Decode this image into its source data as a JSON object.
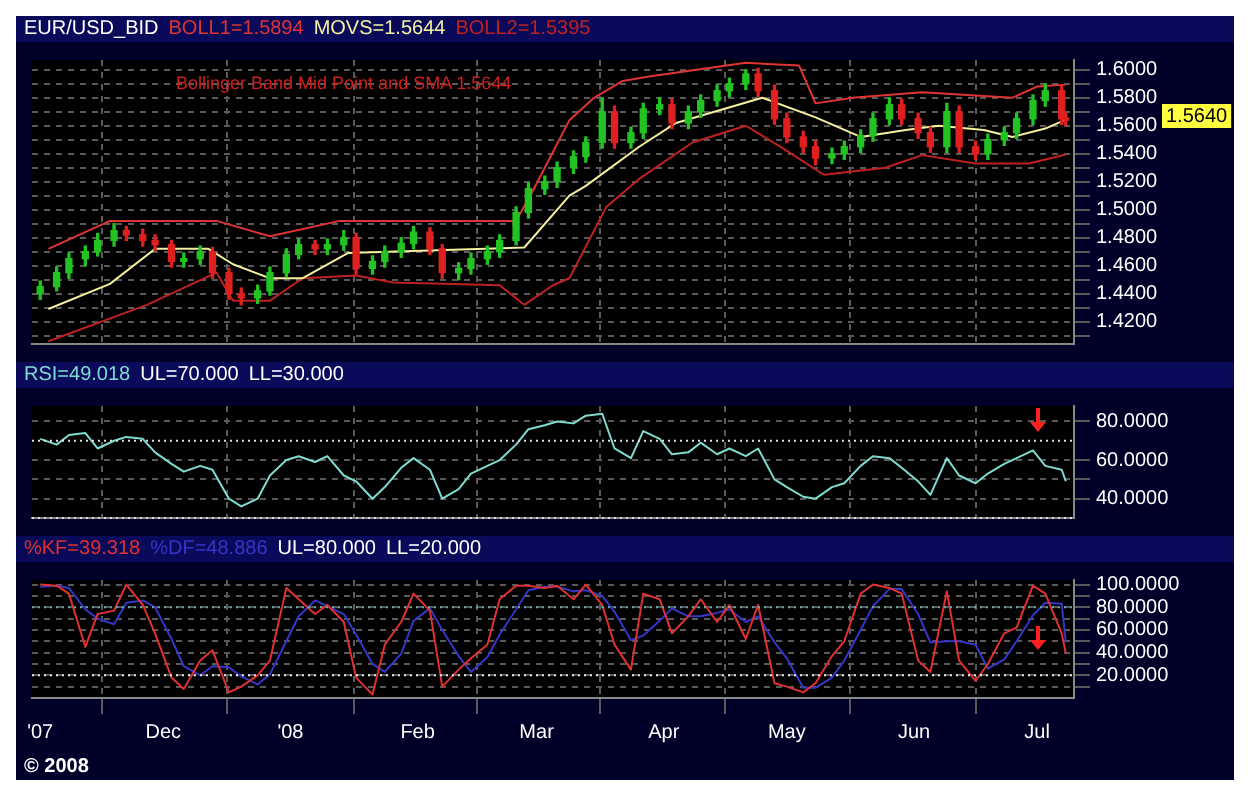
{
  "chart_data": [
    {
      "type": "candlestick",
      "title": "EUR/USD_BID",
      "legend": "top left",
      "tick_labels": "y",
      "grid": true,
      "x": [
        "2007-11-01",
        "2007-11-05",
        "2007-11-08",
        "2007-11-12",
        "2007-11-15",
        "2007-11-19",
        "2007-11-22",
        "2007-11-26",
        "2007-11-29",
        "2007-12-03",
        "2007-12-06",
        "2007-12-10",
        "2007-12-13",
        "2007-12-17",
        "2007-12-20",
        "2007-12-24",
        "2007-12-27",
        "2007-12-31",
        "2008-01-03",
        "2008-01-07",
        "2008-01-10",
        "2008-01-14",
        "2008-01-17",
        "2008-01-21",
        "2008-01-24",
        "2008-01-28",
        "2008-01-31",
        "2008-02-04",
        "2008-02-07",
        "2008-02-11",
        "2008-02-14",
        "2008-02-18",
        "2008-02-21",
        "2008-02-25",
        "2008-02-28",
        "2008-03-03",
        "2008-03-06",
        "2008-03-10",
        "2008-03-13",
        "2008-03-17",
        "2008-03-20",
        "2008-03-24",
        "2008-03-27",
        "2008-03-31",
        "2008-04-03",
        "2008-04-07",
        "2008-04-10",
        "2008-04-14",
        "2008-04-17",
        "2008-04-21",
        "2008-04-24",
        "2008-04-28",
        "2008-05-01",
        "2008-05-05",
        "2008-05-08",
        "2008-05-12",
        "2008-05-15",
        "2008-05-19",
        "2008-05-22",
        "2008-05-26",
        "2008-05-29",
        "2008-06-02",
        "2008-06-05",
        "2008-06-09",
        "2008-06-12",
        "2008-06-16",
        "2008-06-19",
        "2008-06-23",
        "2008-06-26",
        "2008-06-30",
        "2008-07-03",
        "2008-07-07",
        "2008-07-08"
      ],
      "ohlc": [
        [
          1.44,
          1.449,
          1.436,
          1.445
        ],
        [
          1.445,
          1.459,
          1.442,
          1.455
        ],
        [
          1.455,
          1.469,
          1.451,
          1.465
        ],
        [
          1.465,
          1.474,
          1.46,
          1.47
        ],
        [
          1.47,
          1.483,
          1.467,
          1.478
        ],
        [
          1.478,
          1.49,
          1.474,
          1.485
        ],
        [
          1.485,
          1.488,
          1.478,
          1.482
        ],
        [
          1.482,
          1.486,
          1.474,
          1.478
        ],
        [
          1.478,
          1.482,
          1.471,
          1.475
        ],
        [
          1.475,
          1.478,
          1.459,
          1.463
        ],
        [
          1.463,
          1.469,
          1.459,
          1.465
        ],
        [
          1.465,
          1.474,
          1.461,
          1.47
        ],
        [
          1.47,
          1.473,
          1.451,
          1.455
        ],
        [
          1.455,
          1.458,
          1.436,
          1.44
        ],
        [
          1.44,
          1.444,
          1.432,
          1.437
        ],
        [
          1.437,
          1.446,
          1.433,
          1.442
        ],
        [
          1.442,
          1.459,
          1.439,
          1.455
        ],
        [
          1.455,
          1.472,
          1.452,
          1.468
        ],
        [
          1.468,
          1.479,
          1.465,
          1.475
        ],
        [
          1.475,
          1.478,
          1.468,
          1.472
        ],
        [
          1.472,
          1.479,
          1.468,
          1.475
        ],
        [
          1.475,
          1.485,
          1.471,
          1.48
        ],
        [
          1.48,
          1.483,
          1.454,
          1.458
        ],
        [
          1.458,
          1.467,
          1.454,
          1.463
        ],
        [
          1.463,
          1.474,
          1.459,
          1.47
        ],
        [
          1.47,
          1.48,
          1.466,
          1.476
        ],
        [
          1.476,
          1.488,
          1.472,
          1.484
        ],
        [
          1.484,
          1.487,
          1.468,
          1.472
        ],
        [
          1.472,
          1.475,
          1.451,
          1.455
        ],
        [
          1.455,
          1.462,
          1.45,
          1.458
        ],
        [
          1.458,
          1.469,
          1.454,
          1.465
        ],
        [
          1.465,
          1.474,
          1.461,
          1.47
        ],
        [
          1.47,
          1.482,
          1.466,
          1.478
        ],
        [
          1.478,
          1.502,
          1.475,
          1.498
        ],
        [
          1.498,
          1.519,
          1.494,
          1.515
        ],
        [
          1.515,
          1.524,
          1.511,
          1.52
        ],
        [
          1.52,
          1.534,
          1.516,
          1.53
        ],
        [
          1.53,
          1.542,
          1.526,
          1.538
        ],
        [
          1.538,
          1.552,
          1.534,
          1.548
        ],
        [
          1.548,
          1.58,
          1.544,
          1.57
        ],
        [
          1.57,
          1.574,
          1.544,
          1.548
        ],
        [
          1.548,
          1.559,
          1.544,
          1.555
        ],
        [
          1.555,
          1.576,
          1.551,
          1.572
        ],
        [
          1.572,
          1.58,
          1.568,
          1.575
        ],
        [
          1.575,
          1.579,
          1.558,
          1.562
        ],
        [
          1.562,
          1.574,
          1.558,
          1.57
        ],
        [
          1.57,
          1.582,
          1.566,
          1.578
        ],
        [
          1.578,
          1.589,
          1.574,
          1.585
        ],
        [
          1.585,
          1.594,
          1.581,
          1.59
        ],
        [
          1.59,
          1.6,
          1.586,
          1.597
        ],
        [
          1.597,
          1.601,
          1.581,
          1.585
        ],
        [
          1.585,
          1.589,
          1.561,
          1.565
        ],
        [
          1.565,
          1.569,
          1.548,
          1.552
        ],
        [
          1.552,
          1.556,
          1.541,
          1.545
        ],
        [
          1.545,
          1.549,
          1.532,
          1.537
        ],
        [
          1.537,
          1.544,
          1.533,
          1.54
        ],
        [
          1.54,
          1.549,
          1.536,
          1.545
        ],
        [
          1.545,
          1.557,
          1.541,
          1.553
        ],
        [
          1.553,
          1.569,
          1.549,
          1.565
        ],
        [
          1.565,
          1.58,
          1.561,
          1.575
        ],
        [
          1.575,
          1.579,
          1.561,
          1.565
        ],
        [
          1.565,
          1.569,
          1.551,
          1.555
        ],
        [
          1.555,
          1.559,
          1.541,
          1.545
        ],
        [
          1.545,
          1.576,
          1.541,
          1.57
        ],
        [
          1.57,
          1.574,
          1.541,
          1.545
        ],
        [
          1.545,
          1.549,
          1.536,
          1.54
        ],
        [
          1.54,
          1.554,
          1.536,
          1.55
        ],
        [
          1.55,
          1.559,
          1.546,
          1.555
        ],
        [
          1.555,
          1.569,
          1.551,
          1.565
        ],
        [
          1.565,
          1.582,
          1.561,
          1.578
        ],
        [
          1.578,
          1.59,
          1.574,
          1.585
        ],
        [
          1.585,
          1.589,
          1.561,
          1.565
        ],
        [
          1.565,
          1.569,
          1.56,
          1.564
        ]
      ],
      "colors": [
        "#22c322",
        "#22c322",
        "#22c322",
        "#22c322",
        "#22c322",
        "#22c322",
        "#e02020",
        "#e02020",
        "#e02020",
        "#e02020",
        "#22c322",
        "#22c322",
        "#e02020",
        "#e02020",
        "#e02020",
        "#22c322",
        "#22c322",
        "#22c322",
        "#22c322",
        "#e02020",
        "#22c322",
        "#22c322",
        "#e02020",
        "#22c322",
        "#22c322",
        "#22c322",
        "#22c322",
        "#e02020",
        "#e02020",
        "#22c322",
        "#22c322",
        "#22c322",
        "#22c322",
        "#22c322",
        "#22c322",
        "#22c322",
        "#22c322",
        "#22c322",
        "#22c322",
        "#22c322",
        "#e02020",
        "#22c322",
        "#22c322",
        "#22c322",
        "#e02020",
        "#22c322",
        "#22c322",
        "#22c322",
        "#22c322",
        "#22c322",
        "#e02020",
        "#e02020",
        "#e02020",
        "#e02020",
        "#e02020",
        "#22c322",
        "#22c322",
        "#22c322",
        "#22c322",
        "#22c322",
        "#e02020",
        "#e02020",
        "#e02020",
        "#22c322",
        "#e02020",
        "#e02020",
        "#22c322",
        "#22c322",
        "#22c322",
        "#22c322",
        "#22c322",
        "#e02020",
        "#e02020"
      ],
      "series": [
        {
          "type": "line",
          "name": "BOLL1=1.5894",
          "color": "#e03434",
          "x": [
            "2007-11-03",
            "2007-11-18",
            "2007-12-14",
            "2007-12-27",
            "2008-01-13",
            "2008-02-25",
            "2008-02-29",
            "2008-03-09",
            "2008-03-15",
            "2008-03-22",
            "2008-03-28",
            "2008-04-21",
            "2008-05-04",
            "2008-05-08",
            "2008-05-17",
            "2008-06-03",
            "2008-06-25",
            "2008-07-01",
            "2008-07-08"
          ],
          "values": [
            1.472,
            1.492,
            1.492,
            1.481,
            1.492,
            1.492,
            1.513,
            1.564,
            1.58,
            1.592,
            1.595,
            1.605,
            1.603,
            1.576,
            1.58,
            1.584,
            1.58,
            1.588,
            1.5894
          ]
        },
        {
          "type": "line",
          "name": "MOVS=1.5644",
          "color": "#f5f0a0",
          "x": [
            "2007-11-03",
            "2007-11-18",
            "2007-11-29",
            "2007-12-12",
            "2007-12-18",
            "2007-12-27",
            "2008-01-04",
            "2008-01-15",
            "2008-02-27",
            "2008-03-09",
            "2008-03-13",
            "2008-03-26",
            "2008-04-04",
            "2008-04-25",
            "2008-05-08",
            "2008-05-19",
            "2008-05-30",
            "2008-06-07",
            "2008-06-18",
            "2008-06-25",
            "2008-07-03",
            "2008-07-08"
          ],
          "values": [
            1.429,
            1.447,
            1.472,
            1.472,
            1.461,
            1.451,
            1.451,
            1.469,
            1.473,
            1.51,
            1.517,
            1.545,
            1.562,
            1.58,
            1.566,
            1.552,
            1.557,
            1.56,
            1.557,
            1.552,
            1.558,
            1.5644
          ]
        },
        {
          "type": "line",
          "name": "BOLL2=1.5395",
          "color": "#c02020",
          "x": [
            "2007-11-03",
            "2007-11-27",
            "2007-12-14",
            "2007-12-18",
            "2007-12-27",
            "2008-01-04",
            "2008-01-17",
            "2008-01-26",
            "2008-02-21",
            "2008-02-27",
            "2008-03-05",
            "2008-03-09",
            "2008-03-18",
            "2008-03-26",
            "2008-04-08",
            "2008-04-21",
            "2008-04-30",
            "2008-05-10",
            "2008-05-25",
            "2008-06-03",
            "2008-06-16",
            "2008-06-29",
            "2008-07-08"
          ],
          "values": [
            1.406,
            1.432,
            1.455,
            1.435,
            1.435,
            1.451,
            1.453,
            1.448,
            1.446,
            1.432,
            1.446,
            1.451,
            1.502,
            1.522,
            1.548,
            1.56,
            1.544,
            1.525,
            1.53,
            1.539,
            1.533,
            1.533,
            1.5395
          ]
        }
      ],
      "xlim": [
        "2007-10-30",
        "2008-07-10"
      ],
      "ylim": [
        1.404,
        1.607
      ],
      "xticks": [
        {
          "value": "2007-11-01",
          "label": null
        },
        {
          "value": "2007-12-01",
          "label": null
        },
        {
          "value": "2008-01-01",
          "label": null
        },
        {
          "value": "2008-02-01",
          "label": null
        },
        {
          "value": "2008-03-01",
          "label": null
        },
        {
          "value": "2008-04-01",
          "label": null
        },
        {
          "value": "2008-05-01",
          "label": null
        },
        {
          "value": "2008-06-01",
          "label": null
        },
        {
          "value": "2008-07-01",
          "label": null
        }
      ],
      "yticks": [
        {
          "value": 1.41,
          "label": null
        },
        {
          "value": 1.42,
          "label": "1.4200"
        },
        {
          "value": 1.43,
          "label": null
        },
        {
          "value": 1.44,
          "label": "1.4400"
        },
        {
          "value": 1.45,
          "label": null
        },
        {
          "value": 1.46,
          "label": "1.4600"
        },
        {
          "value": 1.47,
          "label": null
        },
        {
          "value": 1.48,
          "label": "1.4800"
        },
        {
          "value": 1.49,
          "label": null
        },
        {
          "value": 1.5,
          "label": "1.5000"
        },
        {
          "value": 1.51,
          "label": null
        },
        {
          "value": 1.52,
          "label": "1.5200"
        },
        {
          "value": 1.53,
          "label": null
        },
        {
          "value": 1.54,
          "label": "1.5400"
        },
        {
          "value": 1.55,
          "label": null
        },
        {
          "value": 1.56,
          "label": "1.5600"
        },
        {
          "value": 1.57,
          "label": null
        },
        {
          "value": 1.58,
          "label": "1.5800"
        },
        {
          "value": 1.59,
          "label": null
        },
        {
          "value": 1.6,
          "label": "1.6000"
        }
      ],
      "annotations": [
        "Bollinger Band Mid Point and SMA 1.5644",
        "1.5640"
      ]
    },
    {
      "type": "line",
      "legend": "top left",
      "tick_labels": "y",
      "grid": true,
      "x": [
        "2007-11-01",
        "2007-11-05",
        "2007-11-08",
        "2007-11-12",
        "2007-11-15",
        "2007-11-19",
        "2007-11-22",
        "2007-11-26",
        "2007-11-29",
        "2007-12-03",
        "2007-12-06",
        "2007-12-10",
        "2007-12-13",
        "2007-12-17",
        "2007-12-20",
        "2007-12-24",
        "2007-12-27",
        "2007-12-31",
        "2008-01-03",
        "2008-01-07",
        "2008-01-10",
        "2008-01-14",
        "2008-01-17",
        "2008-01-21",
        "2008-01-24",
        "2008-01-28",
        "2008-01-31",
        "2008-02-04",
        "2008-02-07",
        "2008-02-11",
        "2008-02-14",
        "2008-02-18",
        "2008-02-21",
        "2008-02-25",
        "2008-02-28",
        "2008-03-03",
        "2008-03-06",
        "2008-03-10",
        "2008-03-13",
        "2008-03-17",
        "2008-03-20",
        "2008-03-24",
        "2008-03-27",
        "2008-03-31",
        "2008-04-03",
        "2008-04-07",
        "2008-04-10",
        "2008-04-14",
        "2008-04-17",
        "2008-04-21",
        "2008-04-24",
        "2008-04-28",
        "2008-05-01",
        "2008-05-05",
        "2008-05-08",
        "2008-05-12",
        "2008-05-15",
        "2008-05-19",
        "2008-05-22",
        "2008-05-26",
        "2008-05-29",
        "2008-06-02",
        "2008-06-05",
        "2008-06-09",
        "2008-06-12",
        "2008-06-16",
        "2008-06-19",
        "2008-06-23",
        "2008-06-26",
        "2008-06-30",
        "2008-07-03",
        "2008-07-07",
        "2008-07-08"
      ],
      "series": [
        {
          "name": "RSI=49.018",
          "color": "#7fdbd0",
          "values": [
            71,
            68,
            73,
            74,
            66,
            70,
            72,
            71,
            64,
            58,
            54,
            57,
            55,
            40,
            36,
            40,
            52,
            60,
            62,
            59,
            62,
            52,
            49,
            40,
            46,
            56,
            61,
            55,
            40,
            45,
            53,
            57,
            60,
            68,
            76,
            78,
            80,
            79,
            83,
            84,
            66,
            61,
            75,
            71,
            63,
            64,
            69,
            63,
            66,
            62,
            66,
            50,
            46,
            41,
            40,
            46,
            48,
            57,
            62,
            61,
            56,
            49,
            42,
            61,
            52,
            48,
            53,
            58,
            61,
            65,
            57,
            55,
            49.018
          ]
        }
      ],
      "xlim": [
        "2007-10-30",
        "2008-07-10"
      ],
      "xticks": [
        {
          "value": "2007-11-01",
          "label": null
        },
        {
          "value": "2007-12-01",
          "label": null
        },
        {
          "value": "2008-01-01",
          "label": null
        },
        {
          "value": "2008-02-01",
          "label": null
        },
        {
          "value": "2008-03-01",
          "label": null
        },
        {
          "value": "2008-04-01",
          "label": null
        },
        {
          "value": "2008-05-01",
          "label": null
        },
        {
          "value": "2008-06-01",
          "label": null
        },
        {
          "value": "2008-07-01",
          "label": null
        }
      ],
      "ylim": [
        30,
        88
      ],
      "yticks": [
        {
          "value": 40,
          "label": "40.0000"
        },
        {
          "value": 50,
          "label": null
        },
        {
          "value": 60,
          "label": "60.0000"
        },
        {
          "value": 80,
          "label": "80.0000"
        }
      ],
      "ref_lines": [
        {
          "axis": "y",
          "value": 70,
          "label": "UL=70.000",
          "color": "#dddddd",
          "line_style": "dotted"
        },
        {
          "axis": "y",
          "value": 30,
          "label": "LL=30.000",
          "color": "#dddddd",
          "line_style": "dotted"
        }
      ]
    },
    {
      "type": "line",
      "legend": "top left",
      "grid": true,
      "x": [
        "2007-11-01",
        "2007-11-05",
        "2007-11-08",
        "2007-11-12",
        "2007-11-15",
        "2007-11-19",
        "2007-11-22",
        "2007-11-26",
        "2007-11-29",
        "2007-12-03",
        "2007-12-06",
        "2007-12-10",
        "2007-12-13",
        "2007-12-17",
        "2007-12-20",
        "2007-12-24",
        "2007-12-27",
        "2007-12-31",
        "2008-01-03",
        "2008-01-07",
        "2008-01-10",
        "2008-01-14",
        "2008-01-17",
        "2008-01-21",
        "2008-01-24",
        "2008-01-28",
        "2008-01-31",
        "2008-02-04",
        "2008-02-07",
        "2008-02-11",
        "2008-02-14",
        "2008-02-18",
        "2008-02-21",
        "2008-02-25",
        "2008-02-28",
        "2008-03-03",
        "2008-03-06",
        "2008-03-10",
        "2008-03-13",
        "2008-03-17",
        "2008-03-20",
        "2008-03-24",
        "2008-03-27",
        "2008-03-31",
        "2008-04-03",
        "2008-04-07",
        "2008-04-10",
        "2008-04-14",
        "2008-04-17",
        "2008-04-21",
        "2008-04-24",
        "2008-04-28",
        "2008-05-01",
        "2008-05-05",
        "2008-05-08",
        "2008-05-12",
        "2008-05-15",
        "2008-05-19",
        "2008-05-22",
        "2008-05-26",
        "2008-05-29",
        "2008-06-02",
        "2008-06-05",
        "2008-06-09",
        "2008-06-12",
        "2008-06-16",
        "2008-06-19",
        "2008-06-23",
        "2008-06-26",
        "2008-06-30",
        "2008-07-03",
        "2008-07-07",
        "2008-07-08"
      ],
      "series": [
        {
          "name": "%KF=39.318",
          "color": "#e03030",
          "values": [
            100,
            99,
            92,
            45,
            74,
            77,
            100,
            82,
            57,
            18,
            8,
            33,
            42,
            5,
            10,
            20,
            33,
            97,
            87,
            74,
            82,
            67,
            18,
            3,
            47,
            67,
            92,
            77,
            10,
            25,
            35,
            47,
            87,
            99,
            99,
            97,
            99,
            87,
            100,
            82,
            47,
            25,
            92,
            87,
            57,
            72,
            87,
            67,
            82,
            52,
            82,
            13,
            10,
            5,
            13,
            37,
            50,
            92,
            100,
            97,
            92,
            33,
            23,
            94,
            33,
            15,
            30,
            57,
            62,
            99,
            92,
            57,
            39.318
          ]
        },
        {
          "name": "%DF=48.886",
          "color": "#3535c8",
          "values": [
            98,
            99,
            97,
            78,
            70,
            65,
            84,
            86,
            80,
            52,
            28,
            20,
            28,
            27,
            19,
            12,
            21,
            50,
            72,
            86,
            81,
            74,
            56,
            30,
            23,
            39,
            68,
            79,
            60,
            37,
            23,
            36,
            56,
            78,
            95,
            98,
            98,
            94,
            95,
            90,
            76,
            51,
            55,
            68,
            79,
            72,
            72,
            75,
            78,
            67,
            72,
            49,
            35,
            9,
            9,
            18,
            33,
            60,
            81,
            96,
            96,
            74,
            49,
            50,
            50,
            47,
            26,
            34,
            50,
            73,
            84,
            83,
            48.886
          ]
        }
      ],
      "xlim": [
        "2007-10-30",
        "2008-07-10"
      ],
      "xticks": [
        {
          "value": "2007-11-01",
          "label": "'07"
        },
        {
          "value": "2007-12-01",
          "label": "Dec"
        },
        {
          "value": "2008-01-01",
          "label": "'08"
        },
        {
          "value": "2008-02-01",
          "label": "Feb"
        },
        {
          "value": "2008-03-01",
          "label": "Mar"
        },
        {
          "value": "2008-04-01",
          "label": "Apr"
        },
        {
          "value": "2008-05-01",
          "label": "May"
        },
        {
          "value": "2008-06-01",
          "label": "Jun"
        },
        {
          "value": "2008-07-01",
          "label": "Jul"
        }
      ],
      "ylim": [
        0,
        104
      ],
      "yticks": [
        {
          "value": 10,
          "label": null
        },
        {
          "value": 20,
          "label": "20.0000"
        },
        {
          "value": 30,
          "label": null
        },
        {
          "value": 40,
          "label": "40.0000"
        },
        {
          "value": 50,
          "label": null
        },
        {
          "value": 60,
          "label": "60.0000"
        },
        {
          "value": 70,
          "label": null
        },
        {
          "value": 80,
          "label": "80.0000"
        },
        {
          "value": 90,
          "label": null
        },
        {
          "value": 100,
          "label": "100.0000"
        }
      ],
      "ref_lines": [
        {
          "axis": "y",
          "value": 80,
          "label": "UL=80.000",
          "color": "#66aaaa",
          "line_style": "dotted"
        },
        {
          "axis": "y",
          "value": 20,
          "label": "LL=20.000",
          "color": "#eeeeee",
          "line_style": "dotted"
        }
      ],
      "annotations": [
        "© 2008"
      ]
    }
  ]
}
